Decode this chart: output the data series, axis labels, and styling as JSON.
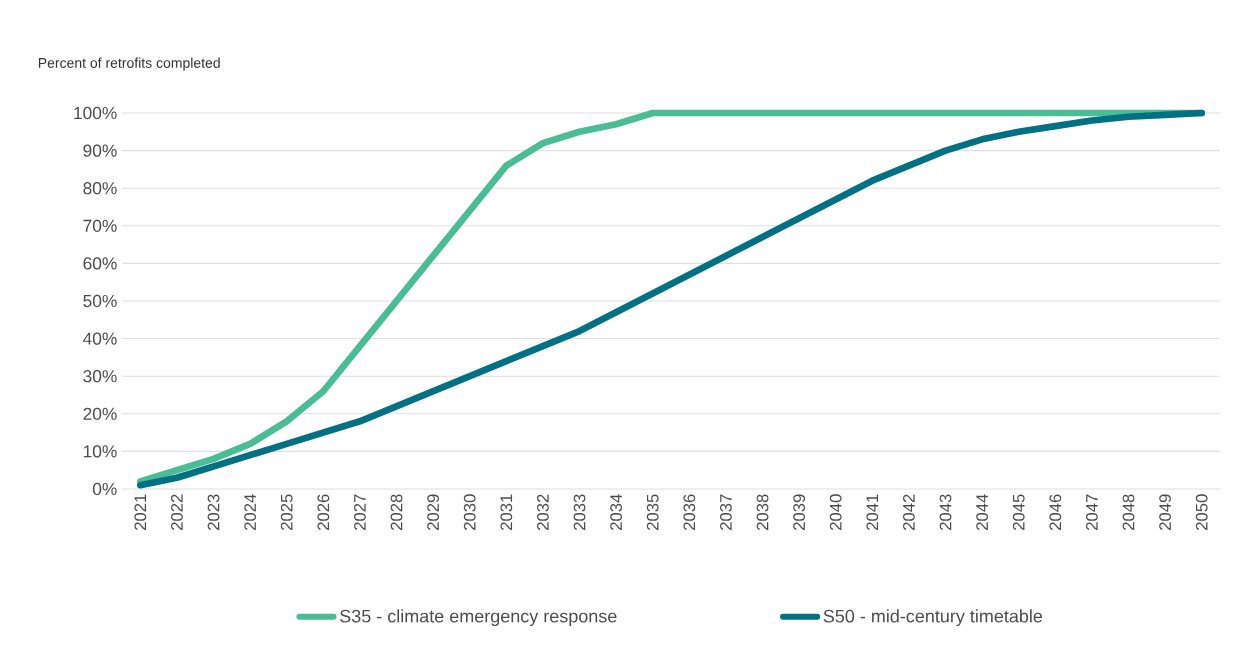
{
  "chart_data": {
    "type": "line",
    "ylabel": "Percent of retrofits completed",
    "categories": [
      "2021",
      "2022",
      "2023",
      "2024",
      "2025",
      "2026",
      "2027",
      "2028",
      "2029",
      "2030",
      "2031",
      "2032",
      "2033",
      "2034",
      "2035",
      "2036",
      "2037",
      "2038",
      "2039",
      "2040",
      "2041",
      "2042",
      "2043",
      "2044",
      "2045",
      "2046",
      "2047",
      "2048",
      "2049",
      "2050"
    ],
    "series": [
      {
        "name": "S35 - climate emergency response",
        "color": "#4bbd94",
        "values": [
          2,
          5,
          8,
          12,
          18,
          26,
          38,
          50,
          62,
          74,
          86,
          92,
          95,
          97,
          100,
          100,
          100,
          100,
          100,
          100,
          100,
          100,
          100,
          100,
          100,
          100,
          100,
          100,
          100,
          100
        ]
      },
      {
        "name": "S50 - mid-century timetable",
        "color": "#037083",
        "values": [
          1,
          3,
          6,
          9,
          12,
          15,
          18,
          22,
          26,
          30,
          34,
          38,
          42,
          47,
          52,
          57,
          62,
          67,
          72,
          77,
          82,
          86,
          90,
          93,
          95,
          96.5,
          98,
          99,
          99.5,
          100
        ]
      }
    ],
    "ylim": [
      0,
      100
    ],
    "yticks": [
      {
        "value": 0,
        "label": "0%"
      },
      {
        "value": 10,
        "label": "10%"
      },
      {
        "value": 20,
        "label": "20%"
      },
      {
        "value": 30,
        "label": "30%"
      },
      {
        "value": 40,
        "label": "40%"
      },
      {
        "value": 50,
        "label": "50%"
      },
      {
        "value": 60,
        "label": "60%"
      },
      {
        "value": 70,
        "label": "70%"
      },
      {
        "value": 80,
        "label": "80%"
      },
      {
        "value": 90,
        "label": "90%"
      },
      {
        "value": 100,
        "label": "100%"
      }
    ],
    "grid": "y",
    "legend": "bottom"
  }
}
